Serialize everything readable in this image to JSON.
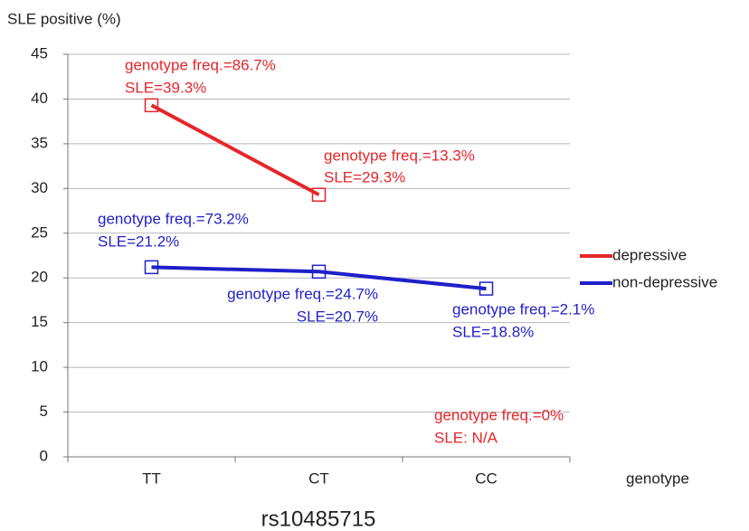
{
  "chart_data": {
    "type": "line",
    "y_label": "SLE positive (%)",
    "x_label": "genotype",
    "title": "rs10485715",
    "categories": [
      "TT",
      "CT",
      "CC"
    ],
    "series": [
      {
        "name": "depressive",
        "color": "#e5262a",
        "values": [
          39.3,
          29.3,
          null
        ],
        "value_labels": [
          "SLE=39.3%",
          "SLE=29.3%",
          "SLE: N/A"
        ],
        "annotations": [
          "genotype freq.=86.7%",
          "genotype freq.=13.3%",
          "genotype freq.=0%"
        ]
      },
      {
        "name": "non-depressive",
        "color": "#1f1fc9",
        "values": [
          21.2,
          20.7,
          18.8
        ],
        "value_labels": [
          "SLE=21.2%",
          "SLE=20.7%",
          "SLE=18.8%"
        ],
        "annotations": [
          "genotype freq.=73.2%",
          "genotype freq.=24.7%",
          "genotype freq.=2.1%"
        ]
      }
    ],
    "ylim": [
      0,
      45
    ],
    "yticks": [
      0,
      5,
      10,
      15,
      20,
      25,
      30,
      35,
      40,
      45
    ],
    "grid": true
  }
}
